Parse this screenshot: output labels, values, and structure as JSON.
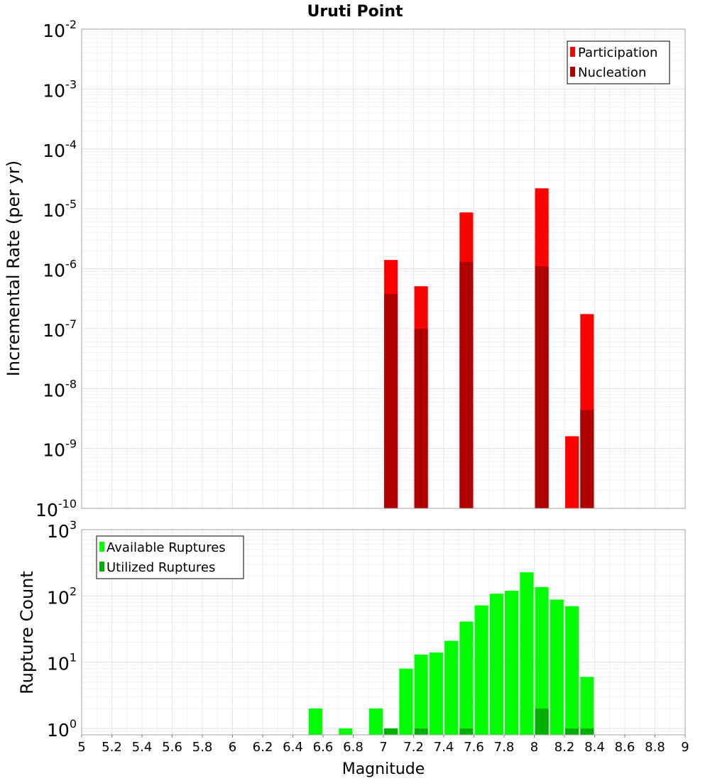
{
  "chart_data": [
    {
      "type": "bar",
      "title": "Uruti Point",
      "xlabel": "",
      "ylabel": "Incremental Rate (per yr)",
      "yscale": "log",
      "xlim": [
        5,
        9
      ],
      "ylim": [
        1e-10,
        0.01
      ],
      "ytick_exponents": [
        -2,
        -3,
        -4,
        -5,
        -6,
        -7,
        -8,
        -9,
        -10
      ],
      "legend_position": "top-right",
      "bar_width": 0.09,
      "series": [
        {
          "name": "Participation",
          "color": "#ff0000",
          "x": [
            7.05,
            7.25,
            7.55,
            8.05,
            8.25,
            8.35
          ],
          "values": [
            1.4e-06,
            5.1e-07,
            8.7e-06,
            2.2e-05,
            1.6e-09,
            1.75e-07
          ]
        },
        {
          "name": "Nucleation",
          "color": "#b00000",
          "x": [
            7.05,
            7.25,
            7.55,
            8.05,
            8.35
          ],
          "values": [
            3.8e-07,
            1e-07,
            1.3e-06,
            1.1e-06,
            4.4e-09
          ]
        }
      ]
    },
    {
      "type": "bar",
      "title": "",
      "xlabel": "Magnitude",
      "ylabel": "Rupture Count",
      "yscale": "log",
      "xlim": [
        5,
        9
      ],
      "ylim": [
        0.8,
        1000
      ],
      "ytick_exponents": [
        3,
        2,
        1,
        0
      ],
      "xticks": [
        "5",
        "5.2",
        "5.4",
        "5.6",
        "5.8",
        "6",
        "6.2",
        "6.4",
        "6.6",
        "6.8",
        "7",
        "7.2",
        "7.4",
        "7.6",
        "7.8",
        "8",
        "8.2",
        "8.4",
        "8.6",
        "8.8",
        "9"
      ],
      "legend_position": "top-left",
      "bar_width": 0.09,
      "series": [
        {
          "name": "Available Ruptures",
          "color": "#00ff00",
          "x": [
            6.55,
            6.75,
            6.95,
            7.05,
            7.15,
            7.25,
            7.35,
            7.45,
            7.55,
            7.65,
            7.75,
            7.85,
            7.95,
            8.05,
            8.15,
            8.25,
            8.35
          ],
          "values": [
            2,
            1,
            2,
            1,
            8,
            13,
            14,
            21,
            41,
            72,
            108,
            120,
            228,
            136,
            88,
            70,
            6
          ]
        },
        {
          "name": "Utilized Ruptures",
          "color": "#00b000",
          "x": [
            7.05,
            7.25,
            7.55,
            8.05,
            8.25,
            8.35
          ],
          "values": [
            1,
            1,
            1,
            2,
            1,
            1
          ]
        }
      ]
    }
  ]
}
